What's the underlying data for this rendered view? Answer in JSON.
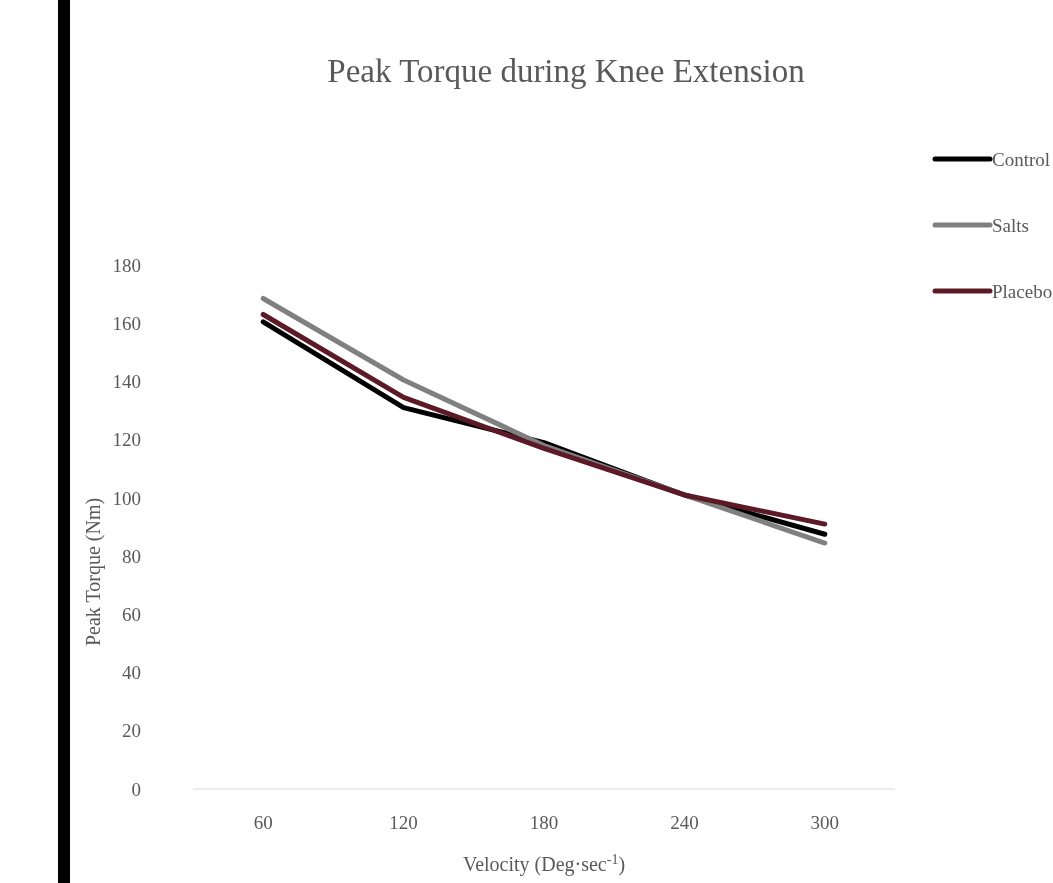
{
  "chart_data": {
    "type": "line",
    "title": "Peak Torque during Knee Extension",
    "xlabel": "Velocity (Deg·sec$^{-1}$)",
    "ylabel": "Peak Torque (Nm)",
    "categories": [
      "60",
      "120",
      "180",
      "240",
      "300"
    ],
    "series": [
      {
        "name": "Control",
        "color": "#000000",
        "values": [
          160.5,
          131,
          119,
          101,
          87.5
        ]
      },
      {
        "name": "Salts",
        "color": "#808080",
        "values": [
          168.5,
          140.5,
          118,
          101,
          84.5
        ]
      },
      {
        "name": "Placebo",
        "color": "#5c1a27",
        "values": [
          163,
          134.5,
          117,
          101,
          91
        ]
      }
    ],
    "ylim": [
      0,
      180
    ],
    "yticks": [
      0,
      20,
      40,
      60,
      80,
      100,
      120,
      140,
      160,
      180
    ],
    "grid": false,
    "legend": "top right",
    "marker": "none",
    "line_style": "solid"
  }
}
